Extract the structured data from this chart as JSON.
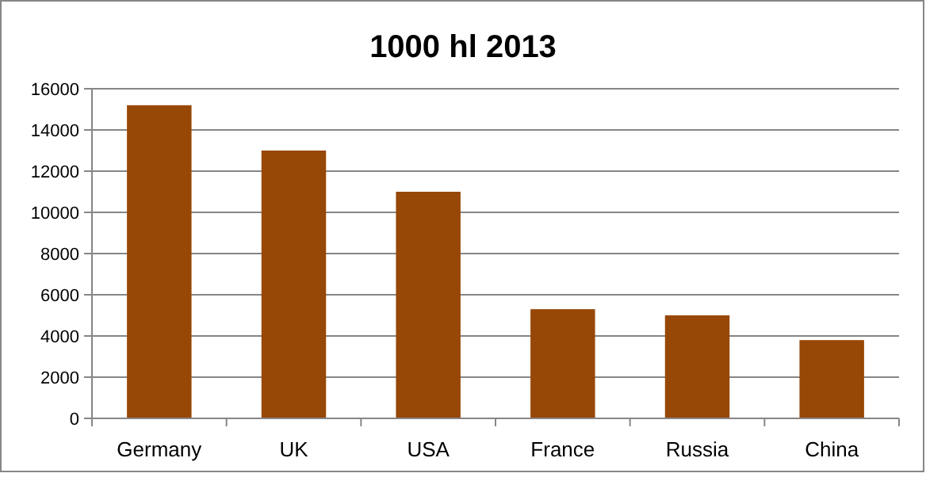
{
  "chart_data": {
    "type": "bar",
    "title": "1000 hl 2013",
    "categories": [
      "Germany",
      "UK",
      "USA",
      "France",
      "Russia",
      "China"
    ],
    "values": [
      15200,
      13000,
      11000,
      5300,
      5000,
      3800
    ],
    "color": "#974706",
    "ylim": [
      0,
      16000
    ],
    "yticks": [
      0,
      2000,
      4000,
      6000,
      8000,
      10000,
      12000,
      14000,
      16000
    ],
    "grid": "y"
  }
}
